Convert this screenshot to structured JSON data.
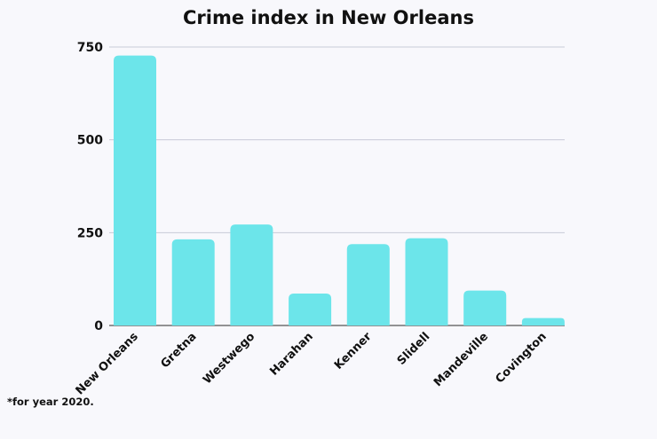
{
  "chart_data": {
    "type": "bar",
    "title": "Crime index in New Orleans",
    "xlabel": "",
    "ylabel": "",
    "categories": [
      "New Orleans",
      "Gretna",
      "Westwego",
      "Harahan",
      "Kenner",
      "Slidell",
      "Mandeville",
      "Covington"
    ],
    "values": [
      727,
      232,
      272,
      86,
      219,
      235,
      94,
      20
    ],
    "ylim": [
      0,
      750
    ],
    "yticks": [
      0,
      250,
      500,
      750
    ],
    "grid": true,
    "bar_color": "#6ce5ea",
    "grid_color": "#c9cbd8"
  },
  "footnote": "*for year 2020."
}
